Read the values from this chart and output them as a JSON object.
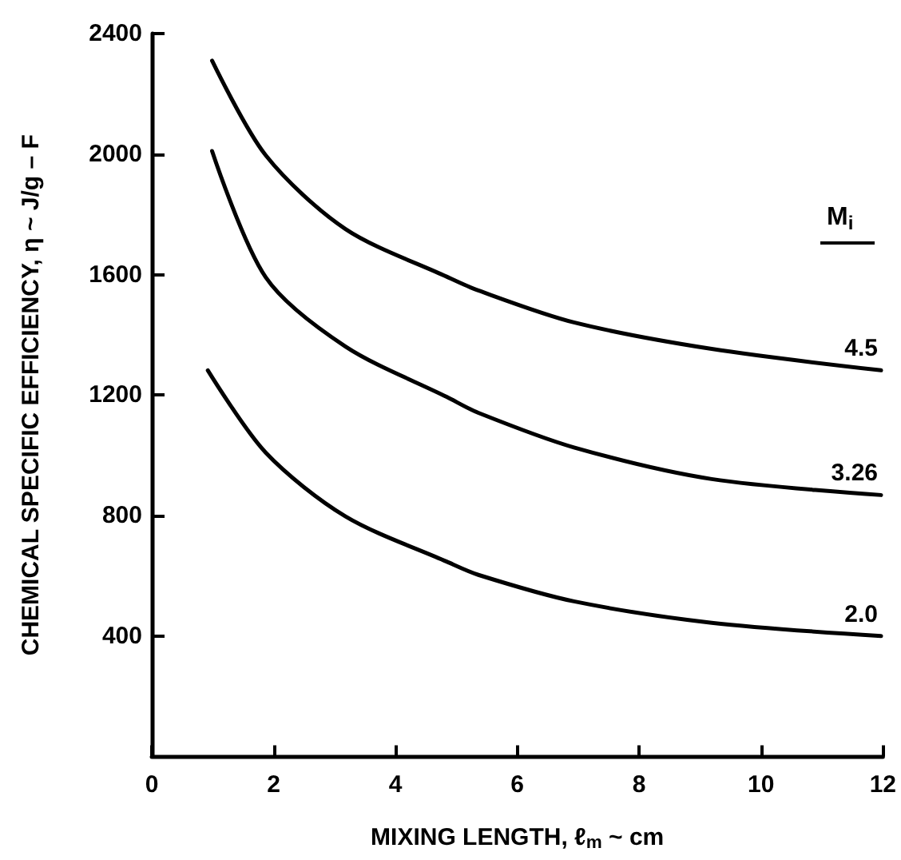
{
  "chart_data": {
    "type": "line",
    "xlabel": "MIXING LENGTH, ℓ$_{m}$ ~ cm",
    "ylabel": "CHEMICAL SPECIFIC EFFICIENCY, η ~ J/g – F",
    "legend_title": "M$_{i}$",
    "xlim": [
      0,
      12
    ],
    "xticks": [
      0,
      2,
      4,
      6,
      8,
      10,
      12
    ],
    "ylim": [
      0,
      2400
    ],
    "yticks": [
      400,
      800,
      1200,
      1600,
      2000,
      2400
    ],
    "grid": false,
    "marker": "none",
    "line_style": "solid",
    "series": [
      {
        "name": "4.5",
        "color": "#000000",
        "x": [
          0.99,
          1.87,
          3.18,
          4.84,
          5.36,
          6.93,
          9.19,
          11.97
        ],
        "values": [
          2310,
          1996,
          1751,
          1593,
          1547,
          1441,
          1353,
          1282
        ]
      },
      {
        "name": "3.26",
        "color": "#000000",
        "x": [
          0.99,
          1.87,
          3.18,
          4.84,
          5.36,
          6.93,
          9.19,
          11.97
        ],
        "values": [
          2010,
          1591,
          1361,
          1194,
          1141,
          1026,
          921,
          868
        ]
      },
      {
        "name": "2.0",
        "color": "#000000",
        "x": [
          0.92,
          1.87,
          3.18,
          4.84,
          5.36,
          6.93,
          9.19,
          11.97
        ],
        "values": [
          1282,
          1009,
          797,
          647,
          603,
          515,
          444,
          400
        ]
      }
    ]
  }
}
